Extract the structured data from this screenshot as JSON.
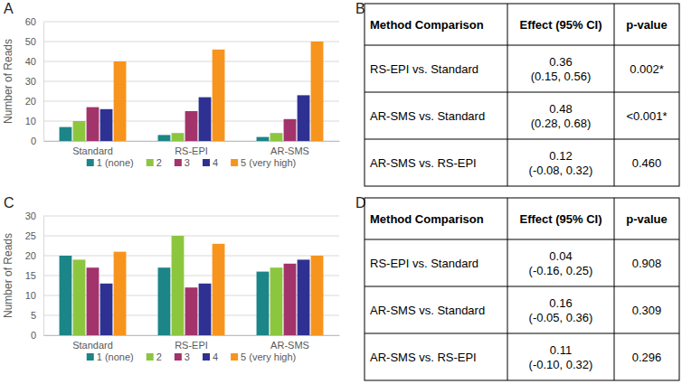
{
  "chart_data": [
    {
      "type": "bar",
      "panel": "A",
      "y_label": "Number of Reads",
      "categories": [
        "Standard",
        "RS-EPI",
        "AR-SMS"
      ],
      "series": [
        {
          "name": "1 (none)",
          "color": "#1b8587",
          "values": [
            7,
            3,
            2
          ]
        },
        {
          "name": "2",
          "color": "#8cc63f",
          "values": [
            10,
            4,
            4
          ]
        },
        {
          "name": "3",
          "color": "#a3336b",
          "values": [
            17,
            15,
            11
          ]
        },
        {
          "name": "4",
          "color": "#2e3192",
          "values": [
            16,
            22,
            23
          ]
        },
        {
          "name": "5 (very high)",
          "color": "#f7941d",
          "values": [
            40,
            46,
            50
          ]
        }
      ],
      "ylim": [
        0,
        60
      ],
      "yticks": [
        0,
        10,
        20,
        30,
        40,
        50,
        60
      ],
      "grid": true,
      "legend": "bottom"
    },
    {
      "type": "table",
      "panel": "B",
      "columns": [
        "Method Comparison",
        "Effect (95% CI)",
        "p-value"
      ],
      "rows": [
        [
          "RS-EPI vs. Standard",
          [
            "0.36",
            "(0.15, 0.56)"
          ],
          "0.002*"
        ],
        [
          "AR-SMS vs. Standard",
          [
            "0.48",
            "(0.28, 0.68)"
          ],
          "<0.001*"
        ],
        [
          "AR-SMS vs. RS-EPI",
          [
            "0.12",
            "(-0.08, 0.32)"
          ],
          "0.460"
        ]
      ]
    },
    {
      "type": "bar",
      "panel": "C",
      "y_label": "Number of Reads",
      "categories": [
        "Standard",
        "RS-EPI",
        "AR-SMS"
      ],
      "series": [
        {
          "name": "1 (none)",
          "color": "#1b8587",
          "values": [
            20,
            17,
            16
          ]
        },
        {
          "name": "2",
          "color": "#8cc63f",
          "values": [
            19,
            25,
            17
          ]
        },
        {
          "name": "3",
          "color": "#a3336b",
          "values": [
            17,
            12,
            18
          ]
        },
        {
          "name": "4",
          "color": "#2e3192",
          "values": [
            13,
            13,
            19
          ]
        },
        {
          "name": "5 (very high)",
          "color": "#f7941d",
          "values": [
            21,
            23,
            20
          ]
        }
      ],
      "ylim": [
        0,
        30
      ],
      "yticks": [
        0,
        5,
        10,
        15,
        20,
        25,
        30
      ],
      "grid": true,
      "legend": "bottom"
    },
    {
      "type": "table",
      "panel": "D",
      "columns": [
        "Method Comparison",
        "Effect (95% CI)",
        "p-value"
      ],
      "rows": [
        [
          "RS-EPI vs. Standard",
          [
            "0.04",
            "(-0.16, 0.25)"
          ],
          "0.908"
        ],
        [
          "AR-SMS vs. Standard",
          [
            "0.16",
            "(-0.05, 0.36)"
          ],
          "0.309"
        ],
        [
          "AR-SMS vs. RS-EPI",
          [
            "0.11",
            "(-0.10, 0.32)"
          ],
          "0.296"
        ]
      ]
    }
  ]
}
